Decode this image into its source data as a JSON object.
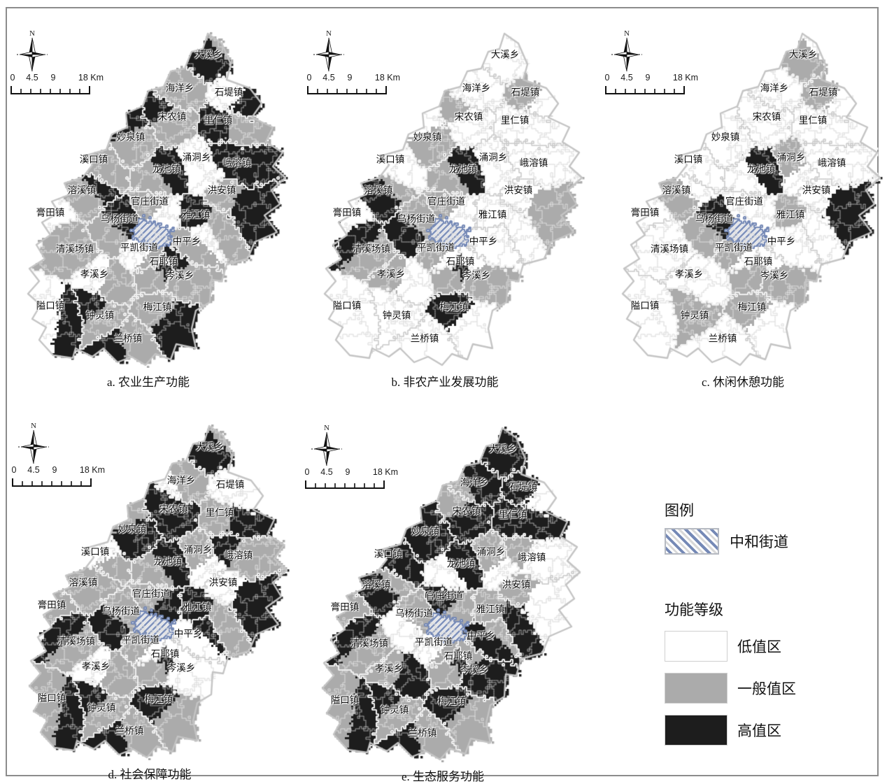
{
  "north_label": "N",
  "scalebar": {
    "ticks": [
      "0",
      "4.5",
      "9"
    ],
    "end": "18 Km"
  },
  "legend": {
    "title": "图例",
    "hatch_label": "中和街道",
    "group_title": "功能等级",
    "hatch_stripe_color": "#7589b6",
    "levels": [
      {
        "label": "低值区",
        "color": "#ffffff"
      },
      {
        "label": "一般值区",
        "color": "#ababab"
      },
      {
        "label": "高值区",
        "color": "#1d1d1d"
      }
    ]
  },
  "townships": [
    {
      "name": "大溪乡"
    },
    {
      "name": "海洋乡"
    },
    {
      "name": "石堤镇"
    },
    {
      "name": "宋农镇"
    },
    {
      "name": "里仁镇"
    },
    {
      "name": "妙泉镇"
    },
    {
      "name": "涌洞乡"
    },
    {
      "name": "峨溶镇"
    },
    {
      "name": "溪口镇"
    },
    {
      "name": "龙池镇"
    },
    {
      "name": "洪安镇"
    },
    {
      "name": "溶溪镇"
    },
    {
      "name": "官庄街道"
    },
    {
      "name": "膏田镇"
    },
    {
      "name": "乌杨街道"
    },
    {
      "name": "雅江镇"
    },
    {
      "name": "中和街道",
      "hatched": true
    },
    {
      "name": "中平乡"
    },
    {
      "name": "清溪场镇"
    },
    {
      "name": "平凯街道"
    },
    {
      "name": "石耶镇"
    },
    {
      "name": "孝溪乡"
    },
    {
      "name": "岑溪乡"
    },
    {
      "name": "隘口镇"
    },
    {
      "name": "钟灵镇"
    },
    {
      "name": "梅江镇"
    },
    {
      "name": "兰桥镇"
    }
  ],
  "maps": [
    {
      "id": "a",
      "caption": "a. 农业生产功能",
      "levels": [
        "21",
        "11",
        "02",
        "12",
        "21",
        "12",
        "00",
        "22",
        "11",
        "21",
        "12",
        "12",
        "10",
        "00",
        "21",
        "21",
        "33",
        "10",
        "11",
        "01",
        "21",
        "01",
        "12",
        "02",
        "12",
        "12",
        "12"
      ]
    },
    {
      "id": "b",
      "caption": "b. 非农产业发展功能",
      "levels": [
        "00",
        "00",
        "10",
        "01",
        "00",
        "10",
        "00",
        "00",
        "00",
        "21",
        "01",
        "21",
        "10",
        "02",
        "12",
        "00",
        "33",
        "00",
        "12",
        "10",
        "21",
        "10",
        "10",
        "00",
        "00",
        "20",
        "00"
      ]
    },
    {
      "id": "c",
      "caption": "c. 休闲休憩功能",
      "levels": [
        "10",
        "00",
        "10",
        "00",
        "00",
        "00",
        "10",
        "00",
        "00",
        "20",
        "02",
        "10",
        "00",
        "00",
        "21",
        "10",
        "33",
        "00",
        "00",
        "10",
        "11",
        "00",
        "10",
        "00",
        "11",
        "10",
        "00"
      ]
    },
    {
      "id": "d",
      "caption": "d. 社会保障功能",
      "levels": [
        "21",
        "10",
        "00",
        "22",
        "12",
        "21",
        "10",
        "12",
        "01",
        "21",
        "02",
        "11",
        "12",
        "10",
        "12",
        "21",
        "33",
        "02",
        "12",
        "10",
        "21",
        "01",
        "00",
        "12",
        "12",
        "21",
        "12"
      ]
    },
    {
      "id": "e",
      "caption": "e. 生态服务功能",
      "levels": [
        "22",
        "21",
        "20",
        "21",
        "22",
        "22",
        "10",
        "01",
        "22",
        "20",
        "10",
        "21",
        "21",
        "12",
        "10",
        "12",
        "33",
        "21",
        "12",
        "01",
        "21",
        "12",
        "21",
        "12",
        "12",
        "21",
        "12"
      ]
    }
  ]
}
